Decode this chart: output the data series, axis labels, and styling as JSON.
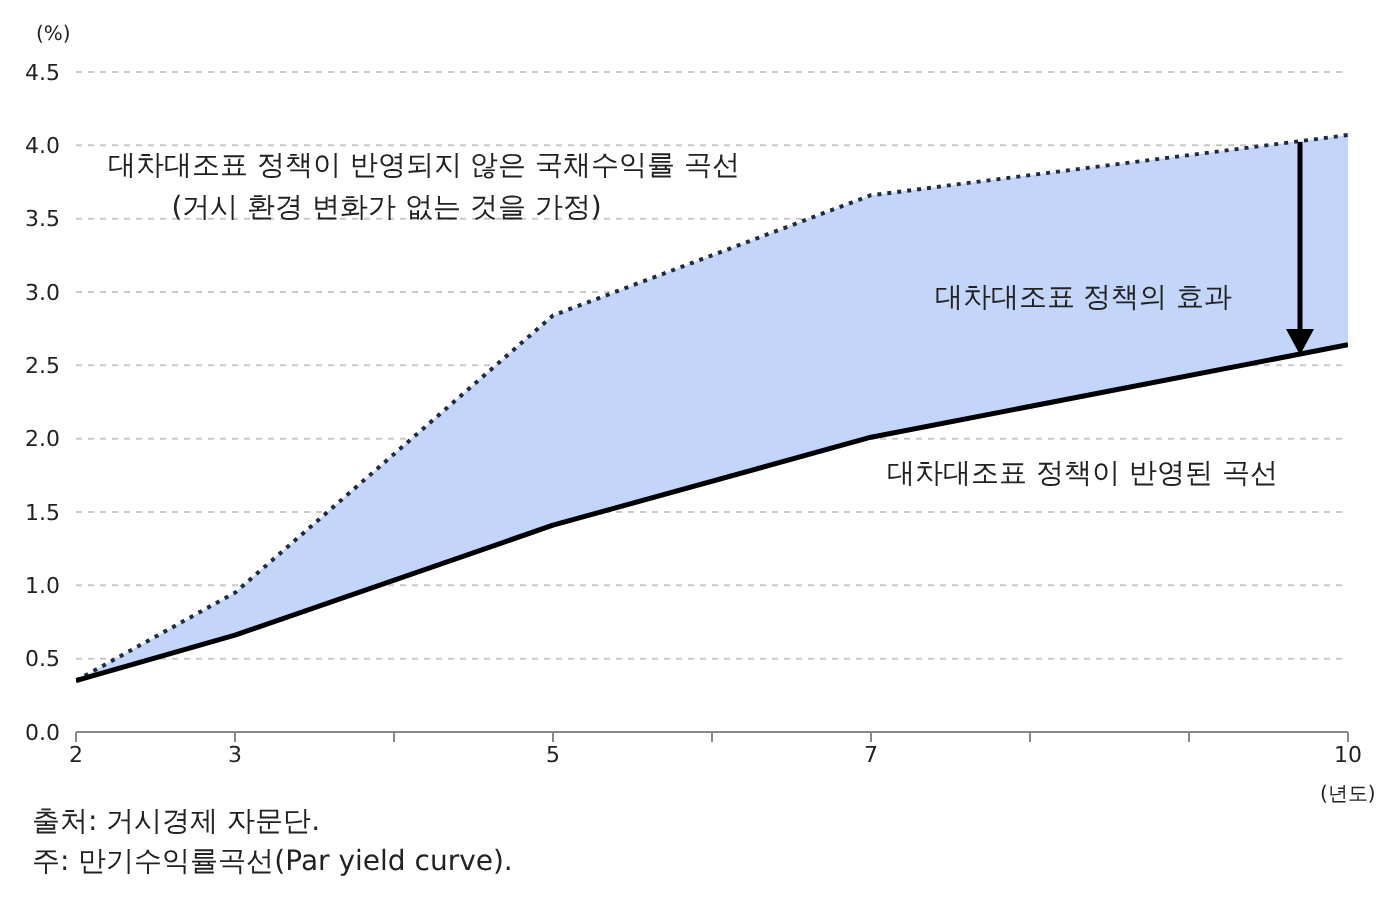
{
  "chart_data": {
    "type": "line",
    "xlabel": "(년도)",
    "ylabel": "(%)",
    "x": [
      2,
      3,
      5,
      7,
      10
    ],
    "series": [
      {
        "name": "대차대조표 정책이 반영되지 않은 국채수익률 곡선",
        "color": "#1f2a44",
        "line_style": "dotted",
        "values": [
          0.35,
          0.95,
          2.84,
          3.66,
          4.07
        ],
        "lower": [
          0.35,
          0.66,
          1.41,
          2.01,
          2.64
        ],
        "upper": [
          0.35,
          0.95,
          2.84,
          3.66,
          4.07
        ]
      },
      {
        "name": "대차대조표 정책이 반영된 곡선",
        "color": "#000000",
        "line_style": "solid",
        "values": [
          0.35,
          0.66,
          1.41,
          2.01,
          2.64
        ]
      }
    ],
    "xlim": [
      2,
      10
    ],
    "xticks": [
      2,
      3,
      {
        "value": 4,
        "label": null
      },
      5,
      {
        "value": 6,
        "label": null
      },
      7,
      {
        "value": 8,
        "label": null
      },
      {
        "value": 9,
        "label": null
      },
      10
    ],
    "ylim": [
      0,
      4.5
    ],
    "yticks": [
      {
        "value": 0,
        "label": "0.0"
      },
      0.5,
      {
        "value": 1,
        "label": "1.0"
      },
      1.5,
      {
        "value": 2,
        "label": "2.0"
      },
      2.5,
      {
        "value": 3,
        "label": "3.0"
      },
      3.5,
      {
        "value": 4,
        "label": "4.0"
      },
      4.5
    ],
    "grid": "y",
    "marker": "none",
    "annotations": [
      "(거시 환경 변화가 없는 것을 가정)",
      "대차대조표 정책의 효과",
      "출처: 거시경제 자문단.",
      "주: 만기수익률곡선(Par yield curve)."
    ]
  }
}
